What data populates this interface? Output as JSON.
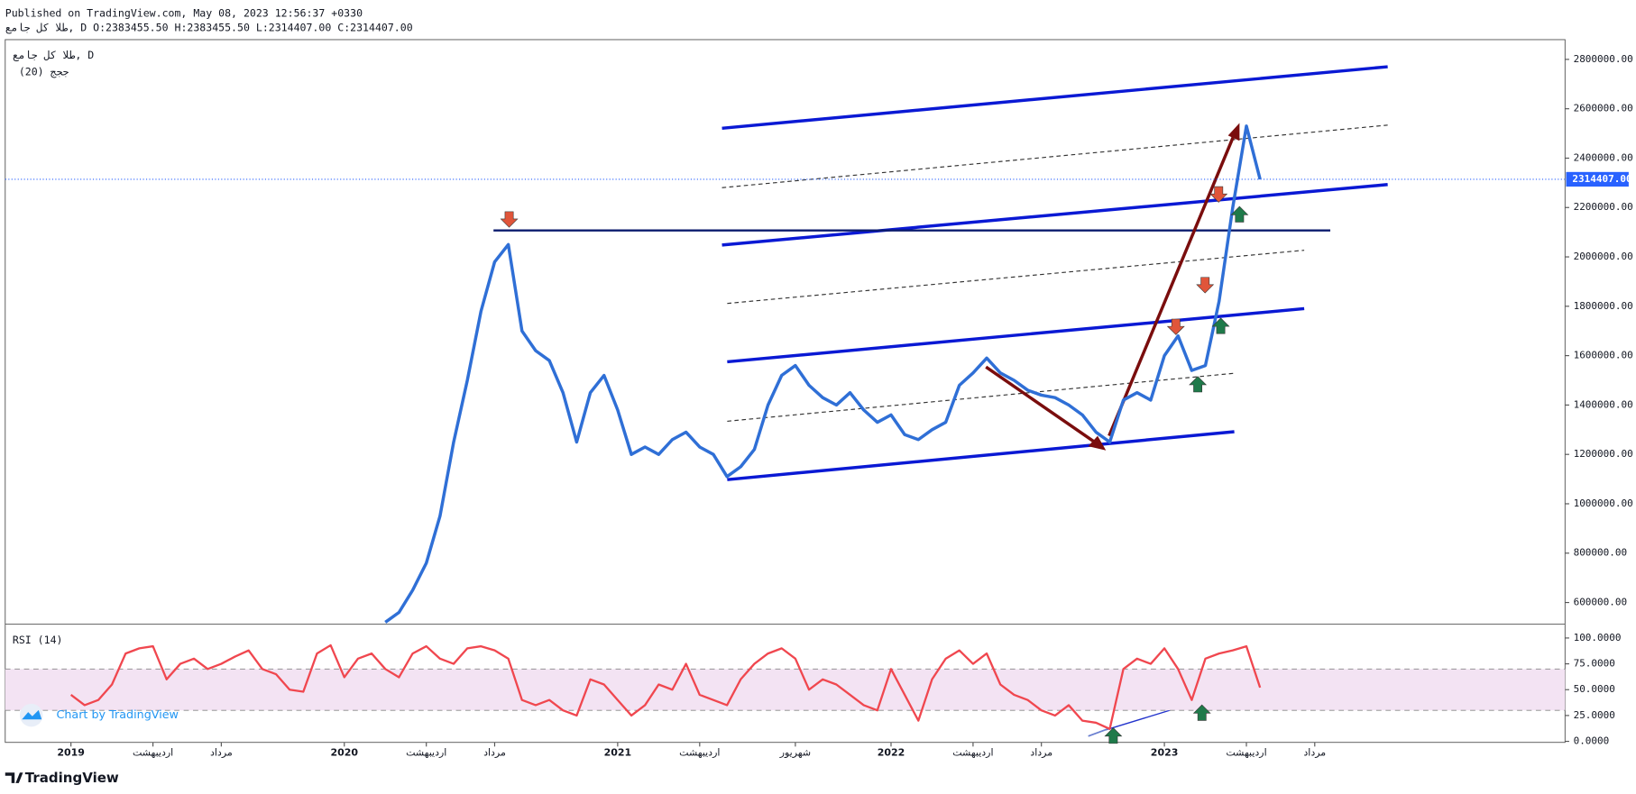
{
  "header": {
    "published": "Published on TradingView.com, May 08, 2023 12:56:37 +0330",
    "ohlc": "طلا کل جامع, D O:2383455.50 H:2383455.50 L:2314407.00 C:2314407.00"
  },
  "chart_data": [
    {
      "type": "line",
      "title": "طلا کل جامع, D",
      "subtitle": "ججج (20)",
      "color": "#2f6fd6",
      "values": [
        null,
        null,
        null,
        null,
        null,
        null,
        null,
        null,
        null,
        null,
        null,
        null,
        null,
        null,
        null,
        null,
        null,
        null,
        null,
        null,
        null,
        null,
        null,
        520000,
        560000,
        650000,
        760000,
        950000,
        1250000,
        1500000,
        1780000,
        1980000,
        2050000,
        1700000,
        1620000,
        1580000,
        1450000,
        1250000,
        1450000,
        1520000,
        1380000,
        1200000,
        1230000,
        1200000,
        1260000,
        1290000,
        1230000,
        1200000,
        1110000,
        1150000,
        1220000,
        1400000,
        1520000,
        1560000,
        1480000,
        1430000,
        1400000,
        1450000,
        1380000,
        1330000,
        1360000,
        1280000,
        1260000,
        1300000,
        1330000,
        1480000,
        1530000,
        1590000,
        1530000,
        1500000,
        1460000,
        1440000,
        1430000,
        1400000,
        1360000,
        1290000,
        1250000,
        1420000,
        1450000,
        1420000,
        1600000,
        1680000,
        1540000,
        1560000,
        1820000,
        2200000,
        2530000,
        2314407,
        null,
        null,
        null,
        null
      ],
      "last_value_label": "2314407.00",
      "ylim": [
        515000,
        2880000
      ],
      "yticks": [
        {
          "value": 600000,
          "label": "600000.00"
        },
        {
          "value": 800000,
          "label": "800000.00"
        },
        {
          "value": 1000000,
          "label": "1000000.00"
        },
        {
          "value": 1200000,
          "label": "1200000.00"
        },
        {
          "value": 1400000,
          "label": "1400000.00"
        },
        {
          "value": 1600000,
          "label": "1600000.00"
        },
        {
          "value": 1800000,
          "label": "1800000.00"
        },
        {
          "value": 2000000,
          "label": "2000000.00"
        },
        {
          "value": 2200000,
          "label": "2200000.00"
        },
        {
          "value": 2400000,
          "label": "2400000.00"
        },
        {
          "value": 2600000,
          "label": "2600000.00"
        },
        {
          "value": 2800000,
          "label": "2800000.00"
        }
      ],
      "grid": false
    },
    {
      "type": "line",
      "title": "RSI (14)",
      "color": "#f0474f",
      "categories": [
        "2019",
        null,
        null,
        null,
        null,
        null,
        "اردیبهشت",
        null,
        null,
        null,
        null,
        "مرداد",
        null,
        null,
        null,
        null,
        null,
        null,
        null,
        null,
        "2020",
        null,
        null,
        null,
        null,
        null,
        "اردیبهشت",
        null,
        null,
        null,
        null,
        "مرداد",
        null,
        null,
        null,
        null,
        null,
        null,
        null,
        null,
        "2021",
        null,
        null,
        null,
        null,
        null,
        "اردیبهشت",
        null,
        null,
        null,
        null,
        null,
        null,
        "شهریور",
        null,
        null,
        null,
        null,
        null,
        null,
        "2022",
        null,
        null,
        null,
        null,
        null,
        "اردیبهشت",
        null,
        null,
        null,
        null,
        "مرداد",
        null,
        null,
        null,
        null,
        null,
        null,
        null,
        null,
        "2023",
        null,
        null,
        null,
        null,
        null,
        "اردیبهشت",
        null,
        null,
        null,
        null,
        "مرداد"
      ],
      "values": [
        45,
        35,
        40,
        55,
        85,
        90,
        92,
        60,
        75,
        80,
        70,
        75,
        82,
        88,
        70,
        65,
        50,
        48,
        85,
        93,
        62,
        80,
        85,
        70,
        62,
        85,
        92,
        80,
        75,
        90,
        92,
        88,
        80,
        40,
        35,
        40,
        30,
        25,
        60,
        55,
        40,
        25,
        35,
        55,
        50,
        75,
        45,
        40,
        35,
        60,
        75,
        85,
        90,
        80,
        50,
        60,
        55,
        45,
        35,
        30,
        70,
        45,
        20,
        60,
        80,
        88,
        75,
        85,
        55,
        45,
        40,
        30,
        25,
        35,
        20,
        18,
        12,
        70,
        80,
        75,
        90,
        70,
        40,
        80,
        85,
        88,
        92,
        52,
        null,
        null,
        null,
        null
      ],
      "bands": [
        70,
        30
      ],
      "ylim": [
        -1,
        112
      ],
      "yticks": [
        {
          "value": 0,
          "label": "0.0000"
        },
        {
          "value": 25,
          "label": "25.0000"
        },
        {
          "value": 50,
          "label": "50.0000"
        },
        {
          "value": 75,
          "label": "75.0000"
        },
        {
          "value": 100,
          "label": "100.0000"
        }
      ],
      "grid": false
    }
  ],
  "footer": {
    "watermark": "Chart by TradingView",
    "logo": "TradingView"
  }
}
